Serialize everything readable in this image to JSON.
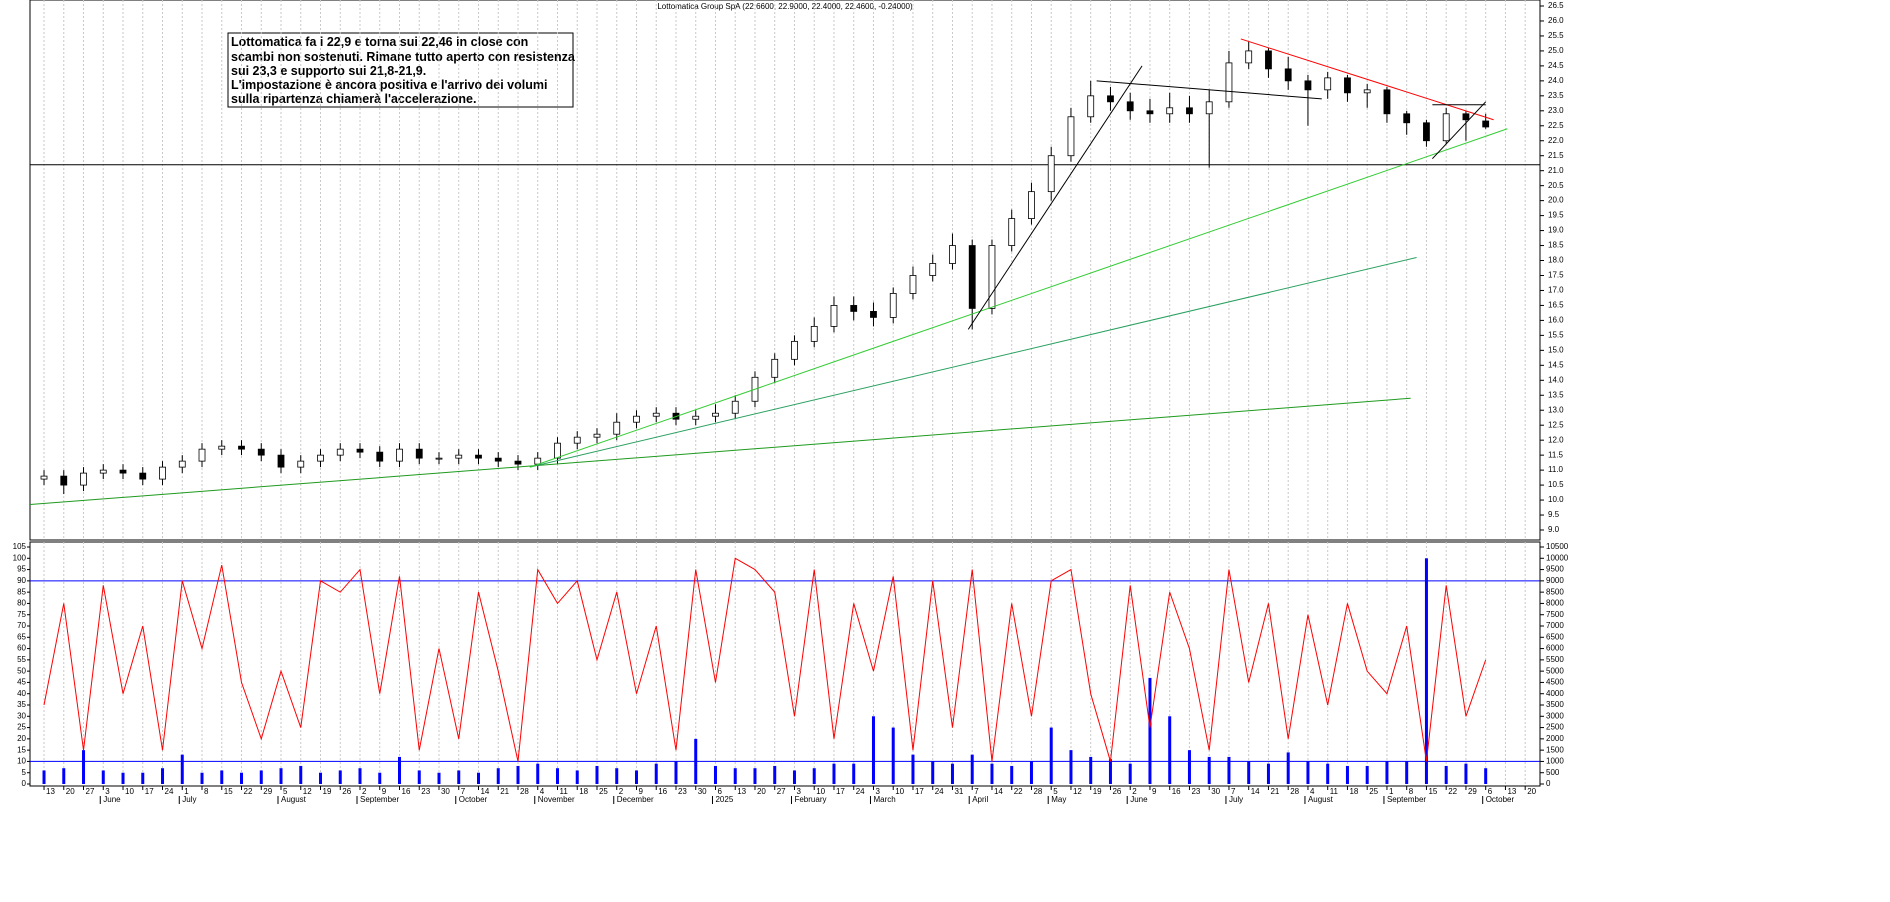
{
  "chart_data": [
    {
      "type": "candlestick",
      "title": "Lottomatica Group SpA (22.6600, 22.9000, 22.4000, 22.4600, -0.24000)",
      "annotation": [
        "Lottomatica fa i 22,9 e torna sui 22,46 in close con",
        "scambi non sostenuti. Rimane tutto aperto con resistenza",
        "sui 23,3 e supporto sui 21,8-21,9.",
        "L'impostazione è ancora positiva e l'arrivo dei volumi",
        "sulla ripartenza chiamerà l'accelerazione."
      ],
      "x": [
        0,
        1,
        2,
        3,
        4,
        5,
        6,
        7,
        8,
        9,
        10,
        11,
        12,
        13,
        14,
        15,
        16,
        17,
        18,
        19,
        20,
        21,
        22,
        23,
        24,
        25,
        26,
        27,
        28,
        29,
        30,
        31,
        32,
        33,
        34,
        35,
        36,
        37,
        38,
        39,
        40,
        41,
        42,
        43,
        44,
        45,
        46,
        47,
        48,
        49,
        50,
        51,
        52,
        53,
        54,
        55,
        56,
        57,
        58,
        59,
        60,
        61,
        62,
        63,
        64,
        65,
        66,
        67,
        68,
        69,
        70,
        71,
        72,
        73
      ],
      "open": [
        10.7,
        10.8,
        10.5,
        10.9,
        11.0,
        10.9,
        10.7,
        11.1,
        11.3,
        11.7,
        11.8,
        11.7,
        11.5,
        11.1,
        11.3,
        11.5,
        11.7,
        11.6,
        11.3,
        11.7,
        11.4,
        11.4,
        11.5,
        11.4,
        11.3,
        11.2,
        11.4,
        11.9,
        12.1,
        12.2,
        12.6,
        12.8,
        12.9,
        12.7,
        12.8,
        12.9,
        13.3,
        14.1,
        14.7,
        15.3,
        15.8,
        16.5,
        16.3,
        16.1,
        16.9,
        17.5,
        17.9,
        18.5,
        16.4,
        18.5,
        19.4,
        20.3,
        21.5,
        22.8,
        23.5,
        23.3,
        23.0,
        22.9,
        23.1,
        22.9,
        23.3,
        24.6,
        25.0,
        24.4,
        24.0,
        23.7,
        24.1,
        23.6,
        23.7,
        22.9,
        22.6,
        22.0,
        22.9,
        22.66
      ],
      "high": [
        11.0,
        11.0,
        11.1,
        11.2,
        11.2,
        11.1,
        11.3,
        11.5,
        11.9,
        12.0,
        12.0,
        11.9,
        11.7,
        11.5,
        11.7,
        11.9,
        11.9,
        11.8,
        11.9,
        11.9,
        11.6,
        11.7,
        11.7,
        11.6,
        11.5,
        11.6,
        12.1,
        12.3,
        12.4,
        12.9,
        13.0,
        13.1,
        13.1,
        13.0,
        13.2,
        13.5,
        14.3,
        14.9,
        15.5,
        16.1,
        16.8,
        16.8,
        16.6,
        17.1,
        17.8,
        18.2,
        18.9,
        18.7,
        18.7,
        19.7,
        20.6,
        21.8,
        23.1,
        24.0,
        23.8,
        23.6,
        23.4,
        23.6,
        23.5,
        23.7,
        25.0,
        25.3,
        25.1,
        24.8,
        24.2,
        24.3,
        24.2,
        23.9,
        23.8,
        23.0,
        22.7,
        23.1,
        23.0,
        22.9
      ],
      "low": [
        10.5,
        10.2,
        10.3,
        10.7,
        10.7,
        10.5,
        10.5,
        10.9,
        11.1,
        11.5,
        11.5,
        11.3,
        10.9,
        10.9,
        11.1,
        11.3,
        11.4,
        11.1,
        11.1,
        11.2,
        11.2,
        11.2,
        11.2,
        11.1,
        11.0,
        11.0,
        11.2,
        11.7,
        11.9,
        12.0,
        12.4,
        12.6,
        12.5,
        12.5,
        12.6,
        12.7,
        13.1,
        13.9,
        14.5,
        15.1,
        15.6,
        16.0,
        15.8,
        15.9,
        16.7,
        17.3,
        17.7,
        15.7,
        16.2,
        18.3,
        19.2,
        20.0,
        21.3,
        22.6,
        23.0,
        22.7,
        22.6,
        22.6,
        22.6,
        21.1,
        23.1,
        24.4,
        24.1,
        23.7,
        22.5,
        23.4,
        23.3,
        23.1,
        22.6,
        22.2,
        21.8,
        21.9,
        22.0,
        22.4
      ],
      "close": [
        10.8,
        10.5,
        10.9,
        11.0,
        10.9,
        10.7,
        11.1,
        11.3,
        11.7,
        11.8,
        11.7,
        11.5,
        11.1,
        11.3,
        11.5,
        11.7,
        11.6,
        11.3,
        11.7,
        11.4,
        11.4,
        11.5,
        11.4,
        11.3,
        11.2,
        11.4,
        11.9,
        12.1,
        12.2,
        12.6,
        12.8,
        12.9,
        12.7,
        12.8,
        12.9,
        13.3,
        14.1,
        14.7,
        15.3,
        15.8,
        16.5,
        16.3,
        16.1,
        16.9,
        17.5,
        17.9,
        18.5,
        16.4,
        18.5,
        19.4,
        20.3,
        21.5,
        22.8,
        23.5,
        23.3,
        23.0,
        22.9,
        23.1,
        22.9,
        23.3,
        24.6,
        25.0,
        24.4,
        24.0,
        23.7,
        24.1,
        23.6,
        23.7,
        22.9,
        22.6,
        22.0,
        22.9,
        22.7,
        22.46
      ],
      "up_color": "#ffffff",
      "down_color": "#000000",
      "xlim": [
        -0.71,
        75.75
      ],
      "ylim": [
        9.0,
        26.5
      ],
      "yticks": [
        {
          "value": 9.0,
          "label": "9.0"
        },
        9.5,
        {
          "value": 10.0,
          "label": "10.0"
        },
        10.5,
        {
          "value": 11.0,
          "label": "11.0"
        },
        11.5,
        {
          "value": 12.0,
          "label": "12.0"
        },
        12.5,
        {
          "value": 13.0,
          "label": "13.0"
        },
        13.5,
        {
          "value": 14.0,
          "label": "14.0"
        },
        14.5,
        {
          "value": 15.0,
          "label": "15.0"
        },
        15.5,
        {
          "value": 16.0,
          "label": "16.0"
        },
        16.5,
        {
          "value": 17.0,
          "label": "17.0"
        },
        17.5,
        {
          "value": 18.0,
          "label": "18.0"
        },
        18.5,
        {
          "value": 19.0,
          "label": "19.0"
        },
        19.5,
        {
          "value": 20.0,
          "label": "20.0"
        },
        20.5,
        {
          "value": 21.0,
          "label": "21.0"
        },
        21.5,
        {
          "value": 22.0,
          "label": "22.0"
        },
        22.5,
        {
          "value": 23.0,
          "label": "23.0"
        },
        23.5,
        {
          "value": 24.0,
          "label": "24.0"
        },
        24.5,
        {
          "value": 25.0,
          "label": "25.0"
        },
        25.5,
        {
          "value": 26.0,
          "label": "26.0"
        },
        26.5
      ],
      "grid": true,
      "hlines": [
        {
          "value": 21.2,
          "color": "#000000"
        }
      ],
      "lines": [
        {
          "x": [
            -0.71,
            69.2
          ],
          "y": [
            9.85,
            13.4
          ],
          "color": "#1e9a1e"
        },
        {
          "x": [
            24.6,
            69.5
          ],
          "y": [
            11.1,
            18.1
          ],
          "color": "#2aa060"
        },
        {
          "x": [
            24.6,
            74.1
          ],
          "y": [
            11.1,
            22.4
          ],
          "color": "#33cc33"
        },
        {
          "x": [
            46.8,
            55.6
          ],
          "y": [
            15.7,
            24.5
          ],
          "color": "#000000"
        },
        {
          "x": [
            53.3,
            64.7
          ],
          "y": [
            24.0,
            23.4
          ],
          "color": "#000000"
        },
        {
          "x": [
            60.6,
            73.4
          ],
          "y": [
            25.4,
            22.7
          ],
          "color": "#ff0000"
        },
        {
          "x": [
            70.3,
            73.0
          ],
          "y": [
            21.4,
            23.3
          ],
          "color": "#000000"
        },
        {
          "x": [
            70.3,
            73.0
          ],
          "y": [
            23.2,
            23.2
          ],
          "color": "#000000"
        }
      ]
    },
    {
      "type": "line",
      "x": [
        0,
        1,
        2,
        3,
        4,
        5,
        6,
        7,
        8,
        9,
        10,
        11,
        12,
        13,
        14,
        15,
        16,
        17,
        18,
        19,
        20,
        21,
        22,
        23,
        24,
        25,
        26,
        27,
        28,
        29,
        30,
        31,
        32,
        33,
        34,
        35,
        36,
        37,
        38,
        39,
        40,
        41,
        42,
        43,
        44,
        45,
        46,
        47,
        48,
        49,
        50,
        51,
        52,
        53,
        54,
        55,
        56,
        57,
        58,
        59,
        60,
        61,
        62,
        63,
        64,
        65,
        66,
        67,
        68,
        69,
        70,
        71,
        72,
        73
      ],
      "series": [
        {
          "type": "bar",
          "color": "#0000ff",
          "axis": "y2",
          "values": [
            600,
            700,
            1500,
            600,
            500,
            500,
            700,
            1300,
            500,
            600,
            500,
            600,
            700,
            800,
            500,
            600,
            700,
            500,
            1200,
            600,
            500,
            600,
            500,
            700,
            800,
            900,
            700,
            600,
            800,
            700,
            600,
            900,
            1000,
            2000,
            800,
            700,
            700,
            800,
            600,
            700,
            900,
            900,
            3000,
            2500,
            1300,
            1000,
            900,
            1300,
            900,
            800,
            1000,
            2500,
            1500,
            1200,
            1100,
            900,
            4700,
            3000,
            1500,
            1200,
            1200,
            1000,
            900,
            1400,
            1000,
            900,
            800,
            800,
            1000,
            1000,
            10000,
            800,
            900,
            700
          ]
        },
        {
          "type": "line",
          "color": "#ff0000",
          "values": [
            35,
            80,
            15,
            88,
            40,
            70,
            15,
            90,
            60,
            97,
            45,
            20,
            50,
            25,
            90,
            85,
            95,
            40,
            92,
            15,
            60,
            20,
            85,
            50,
            10,
            95,
            80,
            90,
            55,
            85,
            40,
            70,
            15,
            95,
            45,
            100,
            95,
            85,
            30,
            95,
            20,
            80,
            50,
            92,
            15,
            90,
            25,
            95,
            10,
            80,
            30,
            90,
            95,
            40,
            10,
            88,
            25,
            85,
            60,
            15,
            95,
            45,
            80,
            20,
            75,
            35,
            80,
            50,
            40,
            70,
            10,
            88,
            30,
            55
          ]
        }
      ],
      "xlim": [
        -0.71,
        75.75
      ],
      "ylim": [
        0,
        105
      ],
      "yticks": [
        0,
        5,
        10,
        15,
        20,
        25,
        30,
        35,
        40,
        45,
        50,
        55,
        60,
        65,
        70,
        75,
        80,
        85,
        90,
        95,
        100,
        105
      ],
      "y2lim": [
        0,
        10500
      ],
      "y2ticks": [
        0,
        500,
        1000,
        1500,
        2000,
        2500,
        3000,
        3500,
        4000,
        4500,
        5000,
        5500,
        6000,
        6500,
        7000,
        7500,
        8000,
        8500,
        9000,
        9500,
        10000,
        10500
      ],
      "grid": true,
      "hlines": [
        {
          "value": 90,
          "color": "#0000ff"
        },
        {
          "value": 10,
          "color": "#0000ff"
        }
      ],
      "xticks": [
        {
          "value": 0,
          "label": "13"
        },
        {
          "value": 1,
          "label": "20"
        },
        {
          "value": 2,
          "label": "27"
        },
        {
          "value": 3,
          "label": "3"
        },
        {
          "value": 4,
          "label": "10"
        },
        {
          "value": 5,
          "label": "17"
        },
        {
          "value": 6,
          "label": "24"
        },
        {
          "value": 7,
          "label": "1"
        },
        {
          "value": 8,
          "label": "8"
        },
        {
          "value": 9,
          "label": "15"
        },
        {
          "value": 10,
          "label": "22"
        },
        {
          "value": 11,
          "label": "29"
        },
        {
          "value": 12,
          "label": "5"
        },
        {
          "value": 13,
          "label": "12"
        },
        {
          "value": 14,
          "label": "19"
        },
        {
          "value": 15,
          "label": "26"
        },
        {
          "value": 16,
          "label": "2"
        },
        {
          "value": 17,
          "label": "9"
        },
        {
          "value": 18,
          "label": "16"
        },
        {
          "value": 19,
          "label": "23"
        },
        {
          "value": 20,
          "label": "30"
        },
        {
          "value": 21,
          "label": "7"
        },
        {
          "value": 22,
          "label": "14"
        },
        {
          "value": 23,
          "label": "21"
        },
        {
          "value": 24,
          "label": "28"
        },
        {
          "value": 25,
          "label": "4"
        },
        {
          "value": 26,
          "label": "11"
        },
        {
          "value": 27,
          "label": "18"
        },
        {
          "value": 28,
          "label": "25"
        },
        {
          "value": 29,
          "label": "2"
        },
        {
          "value": 30,
          "label": "9"
        },
        {
          "value": 31,
          "label": "16"
        },
        {
          "value": 32,
          "label": "23"
        },
        {
          "value": 33,
          "label": "30"
        },
        {
          "value": 34,
          "label": "6"
        },
        {
          "value": 35,
          "label": "13"
        },
        {
          "value": 36,
          "label": "20"
        },
        {
          "value": 37,
          "label": "27"
        },
        {
          "value": 38,
          "label": "3"
        },
        {
          "value": 39,
          "label": "10"
        },
        {
          "value": 40,
          "label": "17"
        },
        {
          "value": 41,
          "label": "24"
        },
        {
          "value": 42,
          "label": "3"
        },
        {
          "value": 43,
          "label": "10"
        },
        {
          "value": 44,
          "label": "17"
        },
        {
          "value": 45,
          "label": "24"
        },
        {
          "value": 46,
          "label": "31"
        },
        {
          "value": 47,
          "label": "7"
        },
        {
          "value": 48,
          "label": "14"
        },
        {
          "value": 49,
          "label": "22"
        },
        {
          "value": 50,
          "label": "28"
        },
        {
          "value": 51,
          "label": "5"
        },
        {
          "value": 52,
          "label": "12"
        },
        {
          "value": 53,
          "label": "19"
        },
        {
          "value": 54,
          "label": "26"
        },
        {
          "value": 55,
          "label": "2"
        },
        {
          "value": 56,
          "label": "9"
        },
        {
          "value": 57,
          "label": "16"
        },
        {
          "value": 58,
          "label": "23"
        },
        {
          "value": 59,
          "label": "30"
        },
        {
          "value": 60,
          "label": "7"
        },
        {
          "value": 61,
          "label": "14"
        },
        {
          "value": 62,
          "label": "21"
        },
        {
          "value": 63,
          "label": "28"
        },
        {
          "value": 64,
          "label": "4"
        },
        {
          "value": 65,
          "label": "11"
        },
        {
          "value": 66,
          "label": "18"
        },
        {
          "value": 67,
          "label": "25"
        },
        {
          "value": 68,
          "label": "1"
        },
        {
          "value": 69,
          "label": "8"
        },
        {
          "value": 70,
          "label": "15"
        },
        {
          "value": 71,
          "label": "22"
        },
        {
          "value": 72,
          "label": "29"
        },
        {
          "value": 73,
          "label": "6"
        },
        {
          "value": 74,
          "label": "13"
        },
        {
          "value": 75,
          "label": "20"
        }
      ],
      "month_ticks": [
        {
          "value": 3,
          "label": "June"
        },
        {
          "value": 7,
          "label": "July"
        },
        {
          "value": 12,
          "label": "August"
        },
        {
          "value": 16,
          "label": "September"
        },
        {
          "value": 21,
          "label": "October"
        },
        {
          "value": 25,
          "label": "November"
        },
        {
          "value": 29,
          "label": "December"
        },
        {
          "value": 34,
          "label": "2025"
        },
        {
          "value": 38,
          "label": "February"
        },
        {
          "value": 42,
          "label": "March"
        },
        {
          "value": 47,
          "label": "April"
        },
        {
          "value": 51,
          "label": "May"
        },
        {
          "value": 55,
          "label": "June"
        },
        {
          "value": 60,
          "label": "July"
        },
        {
          "value": 64,
          "label": "August"
        },
        {
          "value": 68,
          "label": "September"
        },
        {
          "value": 73,
          "label": "October"
        }
      ]
    }
  ]
}
